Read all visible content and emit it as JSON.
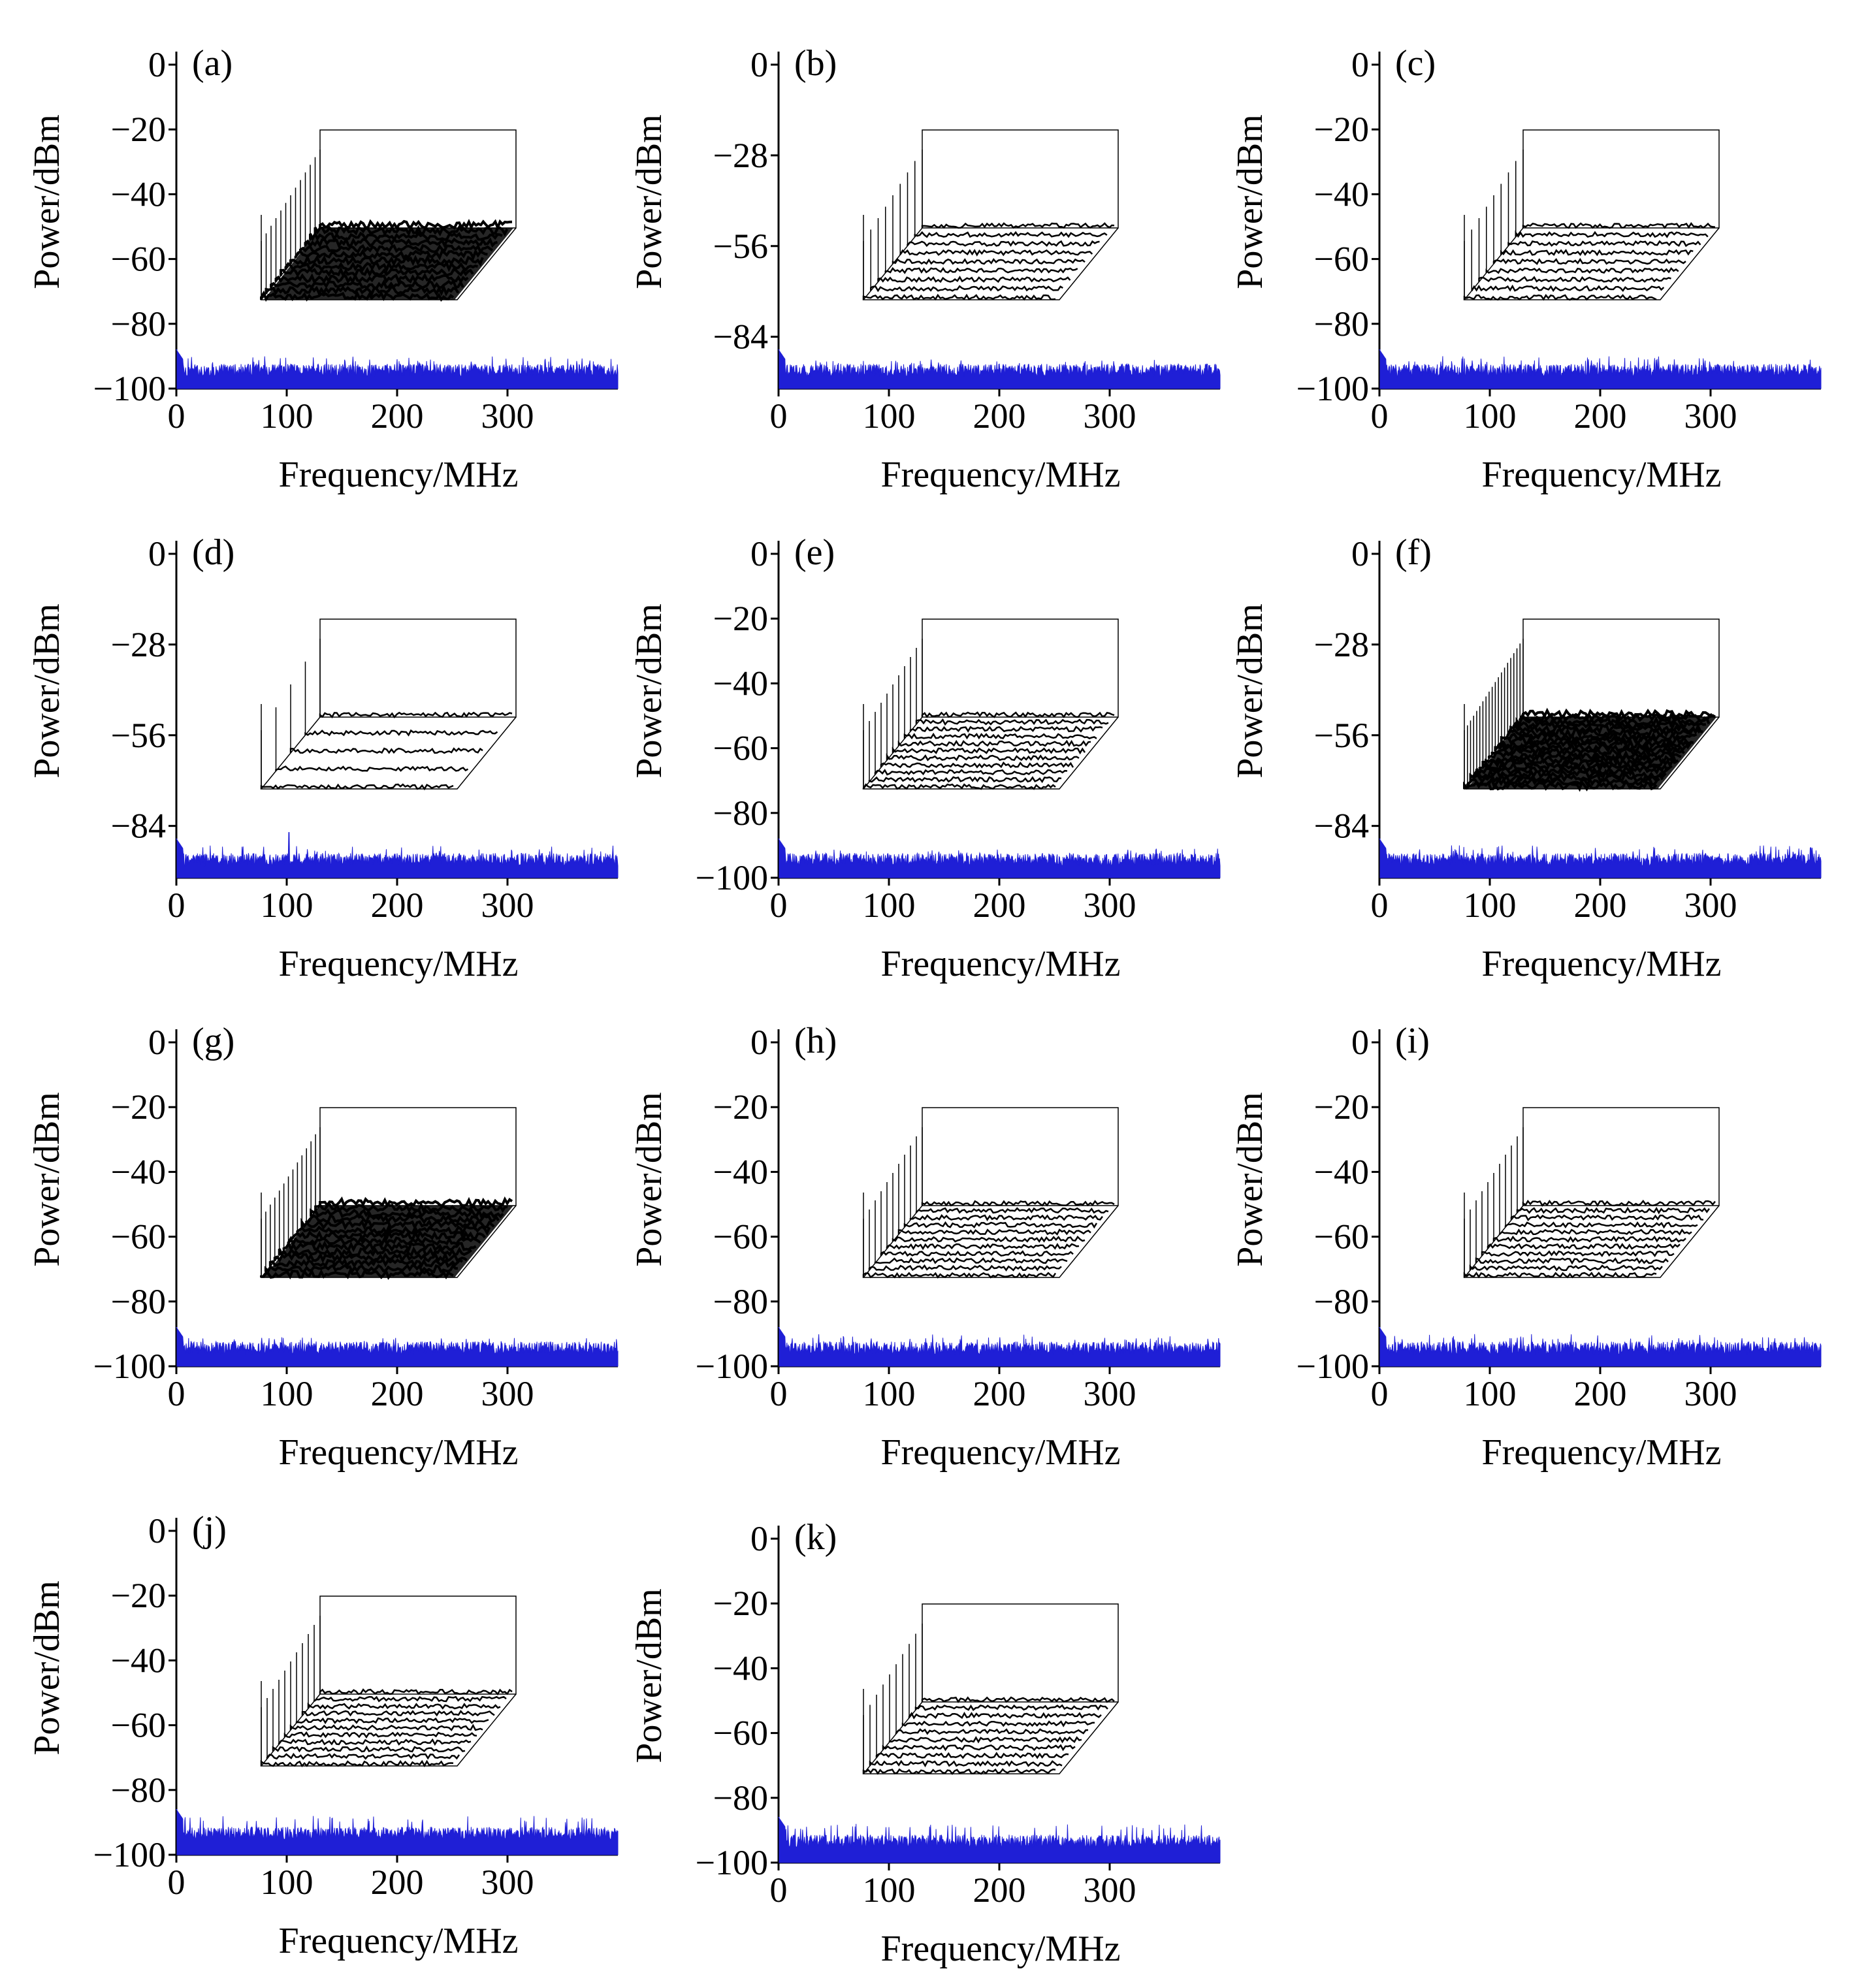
{
  "figure": {
    "panels": [
      "a",
      "b",
      "c",
      "d",
      "e",
      "f",
      "g",
      "h",
      "i",
      "j",
      "k"
    ]
  },
  "colors": {
    "spectrum": "#1f1fd6",
    "inset": "#000000",
    "axis": "#000000",
    "background": "#ffffff"
  },
  "chart_data": [
    {
      "panel": "(a)",
      "type": "line",
      "xlabel": "Frequency/MHz",
      "ylabel": "Power/dBm",
      "xticks": [
        0,
        100,
        200,
        300
      ],
      "yticks": [
        0,
        -20,
        -40,
        -60,
        -80,
        -100
      ],
      "xlim": [
        0,
        400
      ],
      "ylim": [
        -100,
        0
      ],
      "noise_floor_dbm": -95,
      "noise_peak_dbm": -90,
      "low_freq_peak_dbm": -88,
      "inset": {
        "type": "waterfall",
        "traces": 13,
        "style": "dense"
      }
    },
    {
      "panel": "(b)",
      "type": "line",
      "xlabel": "Frequency/MHz",
      "ylabel": "Power/dBm",
      "xticks": [
        0,
        100,
        200,
        300
      ],
      "yticks": [
        0,
        -28,
        -56,
        -84
      ],
      "xlim": [
        0,
        400
      ],
      "ylim": [
        -100,
        0
      ],
      "noise_floor_dbm": -95,
      "noise_peak_dbm": -91,
      "low_freq_peak_dbm": -88,
      "inset": {
        "type": "waterfall",
        "traces": 9,
        "style": "spaced"
      }
    },
    {
      "panel": "(c)",
      "type": "line",
      "xlabel": "Frequency/MHz",
      "ylabel": "Power/dBm",
      "xticks": [
        0,
        100,
        200,
        300
      ],
      "yticks": [
        0,
        -20,
        -40,
        -60,
        -80,
        -100
      ],
      "xlim": [
        0,
        400
      ],
      "ylim": [
        -100,
        0
      ],
      "noise_floor_dbm": -95,
      "noise_peak_dbm": -90,
      "low_freq_peak_dbm": -88,
      "inset": {
        "type": "waterfall",
        "traces": 9,
        "style": "spaced"
      }
    },
    {
      "panel": "(d)",
      "type": "line",
      "xlabel": "Frequency/MHz",
      "ylabel": "Power/dBm",
      "xticks": [
        0,
        100,
        200,
        300
      ],
      "yticks": [
        0,
        -28,
        -56,
        -84
      ],
      "xlim": [
        0,
        400
      ],
      "ylim": [
        -100,
        0
      ],
      "noise_floor_dbm": -95,
      "noise_peak_dbm": -90,
      "low_freq_peak_dbm": -88,
      "spike_mhz": 102,
      "spike_dbm": -86,
      "inset": {
        "type": "waterfall",
        "traces": 5,
        "style": "spaced"
      }
    },
    {
      "panel": "(e)",
      "type": "line",
      "xlabel": "Frequency/MHz",
      "ylabel": "Power/dBm",
      "xticks": [
        0,
        100,
        200,
        300
      ],
      "yticks": [
        0,
        -20,
        -40,
        -60,
        -80,
        -100
      ],
      "xlim": [
        0,
        400
      ],
      "ylim": [
        -100,
        0
      ],
      "noise_floor_dbm": -95,
      "noise_peak_dbm": -91,
      "low_freq_peak_dbm": -88,
      "inset": {
        "type": "waterfall",
        "traces": 11,
        "style": "spaced"
      }
    },
    {
      "panel": "(f)",
      "type": "line",
      "xlabel": "Frequency/MHz",
      "ylabel": "Power/dBm",
      "xticks": [
        0,
        100,
        200,
        300
      ],
      "yticks": [
        0,
        -28,
        -56,
        -84
      ],
      "xlim": [
        0,
        400
      ],
      "ylim": [
        -100,
        0
      ],
      "noise_floor_dbm": -95,
      "noise_peak_dbm": -90,
      "low_freq_peak_dbm": -88,
      "inset": {
        "type": "waterfall",
        "traces": 20,
        "style": "dense"
      }
    },
    {
      "panel": "(g)",
      "type": "line",
      "xlabel": "Frequency/MHz",
      "ylabel": "Power/dBm",
      "xticks": [
        0,
        100,
        200,
        300
      ],
      "yticks": [
        0,
        -20,
        -40,
        -60,
        -80,
        -100
      ],
      "xlim": [
        0,
        400
      ],
      "ylim": [
        -100,
        0
      ],
      "noise_floor_dbm": -95,
      "noise_peak_dbm": -91,
      "low_freq_peak_dbm": -88,
      "inset": {
        "type": "waterfall",
        "traces": 14,
        "style": "dense"
      }
    },
    {
      "panel": "(h)",
      "type": "line",
      "xlabel": "Frequency/MHz",
      "ylabel": "Power/dBm",
      "xticks": [
        0,
        100,
        200,
        300
      ],
      "yticks": [
        0,
        -20,
        -40,
        -60,
        -80,
        -100
      ],
      "xlim": [
        0,
        400
      ],
      "ylim": [
        -100,
        0
      ],
      "noise_floor_dbm": -95,
      "noise_peak_dbm": -90,
      "low_freq_peak_dbm": -88,
      "inset": {
        "type": "waterfall",
        "traces": 11,
        "style": "spaced"
      }
    },
    {
      "panel": "(i)",
      "type": "line",
      "xlabel": "Frequency/MHz",
      "ylabel": "Power/dBm",
      "xticks": [
        0,
        100,
        200,
        300
      ],
      "yticks": [
        0,
        -20,
        -40,
        -60,
        -80,
        -100
      ],
      "xlim": [
        0,
        400
      ],
      "ylim": [
        -100,
        0
      ],
      "noise_floor_dbm": -95,
      "noise_peak_dbm": -90,
      "low_freq_peak_dbm": -88,
      "inset": {
        "type": "waterfall",
        "traces": 11,
        "style": "spaced"
      }
    },
    {
      "panel": "(j)",
      "type": "line",
      "xlabel": "Frequency/MHz",
      "ylabel": "Power/dBm",
      "xticks": [
        0,
        100,
        200,
        300
      ],
      "yticks": [
        0,
        -20,
        -40,
        -60,
        -80,
        -100
      ],
      "xlim": [
        0,
        400
      ],
      "ylim": [
        -100,
        0
      ],
      "noise_floor_dbm": -94,
      "noise_peak_dbm": -88,
      "low_freq_peak_dbm": -86,
      "inset": {
        "type": "waterfall",
        "traces": 11,
        "style": "spaced"
      }
    },
    {
      "panel": "(k)",
      "type": "line",
      "xlabel": "Frequency/MHz",
      "ylabel": "Power/dBm",
      "xticks": [
        0,
        100,
        200,
        300
      ],
      "yticks": [
        0,
        -20,
        -40,
        -60,
        -80,
        -100
      ],
      "xlim": [
        0,
        400
      ],
      "ylim": [
        -100,
        0
      ],
      "noise_floor_dbm": -94,
      "noise_peak_dbm": -88,
      "low_freq_peak_dbm": -86,
      "inset": {
        "type": "waterfall",
        "traces": 10,
        "style": "spaced"
      }
    }
  ]
}
